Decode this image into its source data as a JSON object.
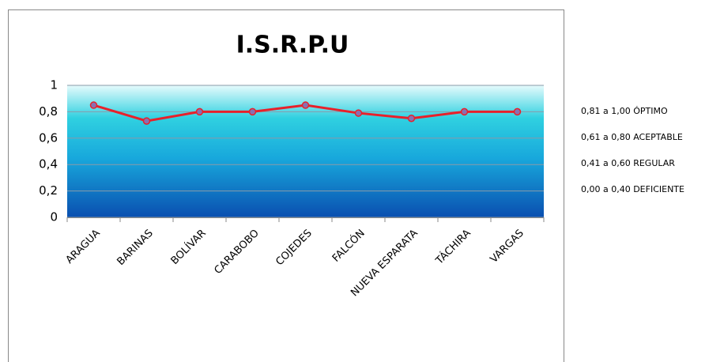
{
  "chart_data": {
    "type": "line",
    "title": "I.S.R.P.U",
    "categories": [
      "ARAGUA",
      "BARINAS",
      "BOLÍVAR",
      "CARABOBO",
      "COJEDES",
      "FALCÓN",
      "NUEVA ESPARATA",
      "TÁCHIRA",
      "VARGAS"
    ],
    "values": [
      0.85,
      0.73,
      0.8,
      0.8,
      0.85,
      0.79,
      0.75,
      0.8,
      0.8
    ],
    "color": "#e8202a",
    "marker_color": "#8a6fb0",
    "ylim": [
      0,
      1
    ],
    "yticks": [
      0,
      {
        "value": 0.2,
        "label": "0,2"
      },
      {
        "value": 0.4,
        "label": "0,4"
      },
      {
        "value": 0.6,
        "label": "0,6"
      },
      {
        "value": 0.8,
        "label": "0,8"
      },
      1
    ],
    "grid": true,
    "annotations": [
      "0,81 a 1,00 ÓPTIMO",
      "0,61 a 0,80 ACEPTABLE",
      "0,41 a 0,60 REGULAR",
      "0,00 a 0,40 DEFICIENTE"
    ]
  }
}
